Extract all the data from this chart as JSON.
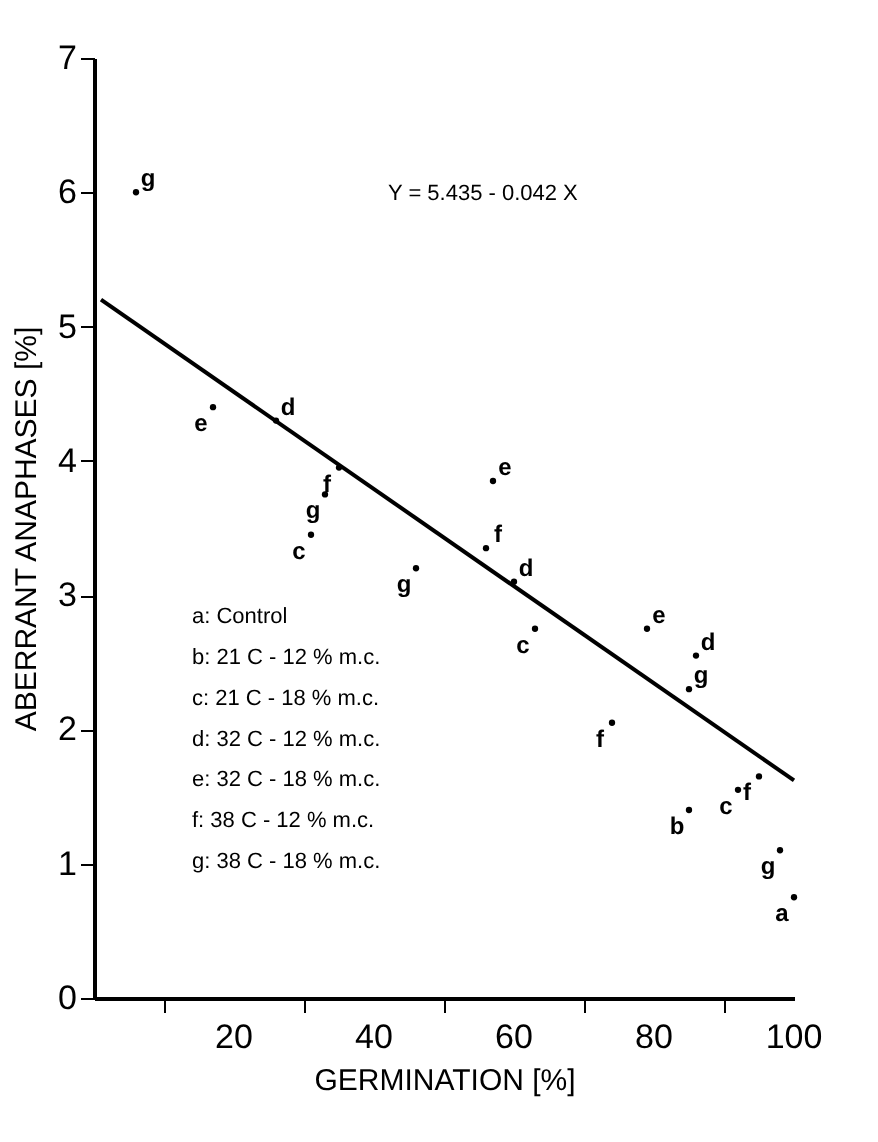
{
  "chart_data": {
    "type": "scatter",
    "xlabel": "GERMINATION [%]",
    "ylabel": "ABERRANT ANAPHASES [%]",
    "xlim": [
      0,
      100
    ],
    "ylim": [
      0,
      7
    ],
    "xticks": [
      {
        "value": 10,
        "label": null
      },
      20,
      {
        "value": 30,
        "label": null
      },
      40,
      {
        "value": 50,
        "label": null
      },
      60,
      {
        "value": 70,
        "label": null
      },
      80,
      {
        "value": 90,
        "label": null
      },
      100
    ],
    "yticks": [
      0,
      1,
      2,
      3,
      4,
      5,
      6,
      7
    ],
    "grid": false,
    "series": [
      {
        "name": "a",
        "color": "#000000",
        "x": [
          100
        ],
        "values": [
          0.75
        ]
      },
      {
        "name": "b",
        "color": "#000000",
        "x": [
          85
        ],
        "values": [
          1.4
        ]
      },
      {
        "name": "c",
        "color": "#000000",
        "x": [
          31,
          63,
          92
        ],
        "values": [
          3.45,
          2.75,
          1.55
        ]
      },
      {
        "name": "d",
        "color": "#000000",
        "x": [
          26,
          60,
          86
        ],
        "values": [
          4.3,
          3.1,
          2.55
        ]
      },
      {
        "name": "e",
        "color": "#000000",
        "x": [
          17,
          57,
          79
        ],
        "values": [
          4.4,
          3.85,
          2.75
        ]
      },
      {
        "name": "f",
        "color": "#000000",
        "x": [
          35,
          56,
          74,
          95
        ],
        "values": [
          3.95,
          3.35,
          2.05,
          1.65
        ]
      },
      {
        "name": "g",
        "color": "#000000",
        "x": [
          6,
          33,
          46,
          85,
          98
        ],
        "values": [
          6.0,
          3.75,
          3.2,
          2.3,
          1.1
        ]
      },
      {
        "type": "line",
        "color": "#000000",
        "line_style": "solid",
        "x": [
          1,
          100
        ],
        "values": [
          5.2,
          1.62
        ]
      }
    ],
    "annotations": [
      "Y = 5.435 - 0.042 X",
      "a: Control",
      "b: 21 C - 12 % m.c.",
      "c: 21 C - 18 % m.c.",
      "d: 32 C - 12 % m.c.",
      "e: 32 C - 18 % m.c.",
      "f: 38 C - 12 % m.c.",
      "g: 38 C - 18 % m.c."
    ]
  }
}
